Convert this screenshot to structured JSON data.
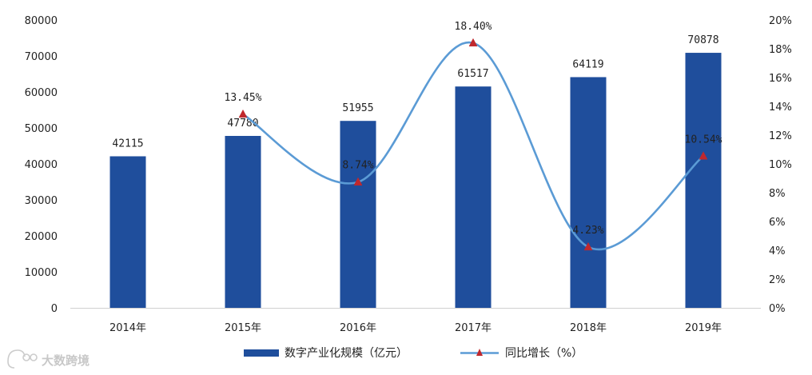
{
  "chart_data": {
    "type": "bar",
    "categories": [
      "2014年",
      "2015年",
      "2016年",
      "2017年",
      "2018年",
      "2019年"
    ],
    "series": [
      {
        "name": "数字产业化规模（亿元）",
        "type": "bar",
        "axis": "left",
        "values": [
          42115,
          47780,
          51955,
          61517,
          64119,
          70878
        ],
        "labels": [
          "42115",
          "47780",
          "51955",
          "61517",
          "64119",
          "70878"
        ],
        "color": "#1f4e9c"
      },
      {
        "name": "同比增长（%）",
        "type": "line",
        "axis": "right",
        "values": [
          null,
          13.45,
          8.74,
          18.4,
          4.23,
          10.54
        ],
        "labels": [
          "",
          "13.45%",
          "8.74%",
          "18.40%",
          "4.23%",
          "10.54%"
        ],
        "color": "#5b9bd5",
        "marker_color": "#c0282d"
      }
    ],
    "y_left": {
      "ylim": [
        0,
        80000
      ],
      "ticks": [
        "0",
        "10000",
        "20000",
        "30000",
        "40000",
        "50000",
        "60000",
        "70000",
        "80000"
      ]
    },
    "y_right": {
      "ylim": [
        0,
        20
      ],
      "ticks": [
        "0%",
        "2%",
        "4%",
        "6%",
        "8%",
        "10%",
        "12%",
        "14%",
        "16%",
        "18%",
        "20%"
      ]
    },
    "title": "",
    "xlabel": "",
    "ylabel": "",
    "grid": false,
    "legend_position": "bottom"
  },
  "legend": {
    "bar_label": "数字产业化规模（亿元）",
    "line_label": "同比增长（%）"
  },
  "watermark": {
    "text": "大数跨境"
  },
  "colors": {
    "axis": "#d0d0d0",
    "text": "#222222"
  }
}
